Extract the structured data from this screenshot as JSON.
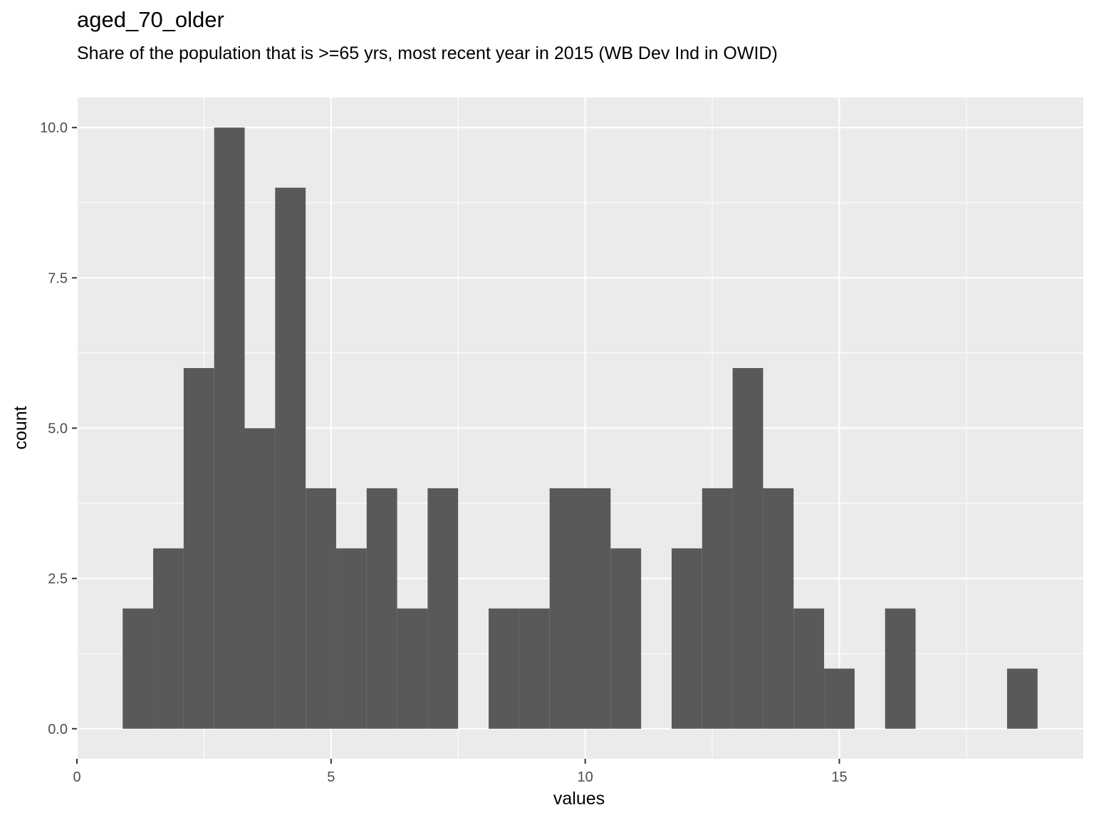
{
  "title": "aged_70_older",
  "subtitle": "Share of the population that is >=65 yrs, most recent year in 2015 (WB Dev Ind in OWID)",
  "chart_data": {
    "type": "bar",
    "title": "aged_70_older",
    "subtitle": "Share of the population that is >=65 yrs, most recent year in 2015 (WB Dev Ind in OWID)",
    "xlabel": "values",
    "ylabel": "count",
    "xlim": [
      0,
      19.8
    ],
    "ylim": [
      -0.5,
      10.5
    ],
    "x_ticks": [
      0,
      5,
      10,
      15
    ],
    "x_tick_labels": [
      "0",
      "5",
      "10",
      "15"
    ],
    "y_ticks": [
      0,
      2.5,
      5,
      7.5,
      10
    ],
    "y_tick_labels": [
      "0.0",
      "2.5",
      "5.0",
      "7.5",
      "10.0"
    ],
    "bin_width": 0.6,
    "bins": [
      {
        "x0": 0.9,
        "x1": 1.5,
        "count": 2
      },
      {
        "x0": 1.5,
        "x1": 2.1,
        "count": 3
      },
      {
        "x0": 2.1,
        "x1": 2.7,
        "count": 6
      },
      {
        "x0": 2.7,
        "x1": 3.3,
        "count": 10
      },
      {
        "x0": 3.3,
        "x1": 3.9,
        "count": 5
      },
      {
        "x0": 3.9,
        "x1": 4.5,
        "count": 9
      },
      {
        "x0": 4.5,
        "x1": 5.1,
        "count": 4
      },
      {
        "x0": 5.1,
        "x1": 5.7,
        "count": 3
      },
      {
        "x0": 5.7,
        "x1": 6.3,
        "count": 4
      },
      {
        "x0": 6.3,
        "x1": 6.9,
        "count": 2
      },
      {
        "x0": 6.9,
        "x1": 7.5,
        "count": 4
      },
      {
        "x0": 7.5,
        "x1": 8.1,
        "count": 0
      },
      {
        "x0": 8.1,
        "x1": 8.7,
        "count": 2
      },
      {
        "x0": 8.7,
        "x1": 9.3,
        "count": 2
      },
      {
        "x0": 9.3,
        "x1": 9.9,
        "count": 4
      },
      {
        "x0": 9.9,
        "x1": 10.5,
        "count": 4
      },
      {
        "x0": 10.5,
        "x1": 11.1,
        "count": 3
      },
      {
        "x0": 11.1,
        "x1": 11.7,
        "count": 0
      },
      {
        "x0": 11.7,
        "x1": 12.3,
        "count": 3
      },
      {
        "x0": 12.3,
        "x1": 12.9,
        "count": 4
      },
      {
        "x0": 12.9,
        "x1": 13.5,
        "count": 6
      },
      {
        "x0": 13.5,
        "x1": 14.1,
        "count": 4
      },
      {
        "x0": 14.1,
        "x1": 14.7,
        "count": 2
      },
      {
        "x0": 14.7,
        "x1": 15.3,
        "count": 1
      },
      {
        "x0": 15.3,
        "x1": 15.9,
        "count": 0
      },
      {
        "x0": 15.9,
        "x1": 16.5,
        "count": 2
      },
      {
        "x0": 16.5,
        "x1": 17.1,
        "count": 0
      },
      {
        "x0": 17.1,
        "x1": 17.7,
        "count": 0
      },
      {
        "x0": 17.7,
        "x1": 18.3,
        "count": 0
      },
      {
        "x0": 18.3,
        "x1": 18.9,
        "count": 1
      }
    ],
    "grid": true,
    "colors": {
      "panel_background": "#ebebeb",
      "grid_major": "#ffffff",
      "bar_fill": "#595959"
    }
  }
}
